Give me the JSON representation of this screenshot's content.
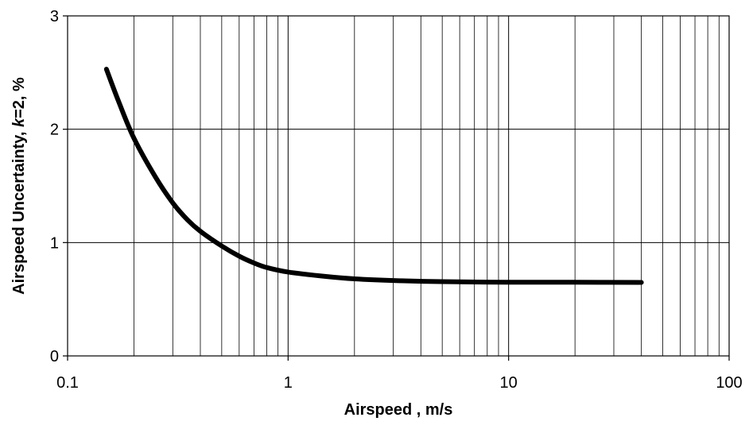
{
  "chart_data": {
    "type": "line",
    "title": "",
    "xlabel": "Airspeed , m/s",
    "ylabel": {
      "prefix": "Airspeed Uncertainty, ",
      "italic": "k",
      "suffix": "=2, %"
    },
    "x_scale": "log",
    "xlim": [
      0.1,
      100
    ],
    "ylim": [
      0,
      3
    ],
    "x_ticks": [
      0.1,
      1,
      10,
      100
    ],
    "x_tick_labels": [
      "0.1",
      "1",
      "10",
      "100"
    ],
    "y_ticks": [
      0,
      1,
      2,
      3
    ],
    "y_tick_labels": [
      "0",
      "1",
      "2",
      "3"
    ],
    "grid": {
      "major_y": true,
      "major_x": true,
      "minor_x": true
    },
    "line_color": "#000000",
    "series": [
      {
        "x": [
          0.15,
          0.17,
          0.2,
          0.25,
          0.3,
          0.35,
          0.4,
          0.5,
          0.6,
          0.7,
          0.8,
          1,
          1.5,
          2,
          3,
          5,
          10,
          20,
          40
        ],
        "y": [
          2.53,
          2.25,
          1.92,
          1.58,
          1.35,
          1.2,
          1.1,
          0.97,
          0.88,
          0.82,
          0.78,
          0.74,
          0.7,
          0.68,
          0.665,
          0.655,
          0.65,
          0.65,
          0.648
        ]
      }
    ]
  }
}
